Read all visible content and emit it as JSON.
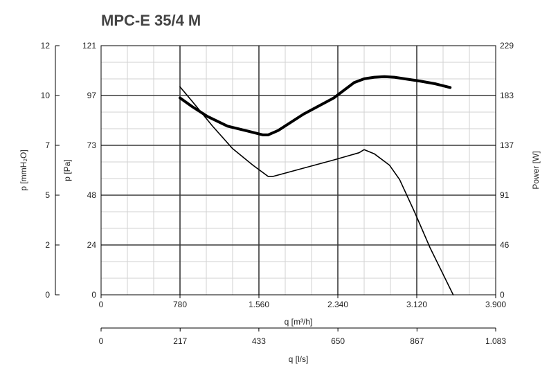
{
  "chart_data": {
    "type": "line",
    "title": "MPC-E 35/4 M",
    "x_axes": [
      {
        "label": "q [m³/h]",
        "range": [
          0,
          3900
        ],
        "ticks": [
          0,
          780,
          1560,
          2340,
          3120,
          3900
        ],
        "tick_labels": [
          "0",
          "780",
          "1.560",
          "2.340",
          "3.120",
          "3.900"
        ]
      },
      {
        "label": "q [l/s]",
        "range": [
          0,
          1083
        ],
        "ticks": [
          0,
          217,
          433,
          650,
          867,
          1083
        ],
        "tick_labels": [
          "0",
          "217",
          "433",
          "650",
          "867",
          "1.083"
        ]
      }
    ],
    "y_axes": [
      {
        "position": "left-outer",
        "label": "p [mmH₂O]",
        "range": [
          0,
          12
        ],
        "ticks": [
          0,
          2,
          5,
          7,
          10,
          12
        ],
        "tick_labels": [
          "0",
          "2",
          "5",
          "7",
          "10",
          "12"
        ]
      },
      {
        "position": "left-inner",
        "label": "p [Pa]",
        "range": [
          0,
          121
        ],
        "ticks": [
          0,
          24,
          48,
          73,
          97,
          121
        ],
        "tick_labels": [
          "0",
          "24",
          "48",
          "73",
          "97",
          "121"
        ]
      },
      {
        "position": "right",
        "label": "Power [W]",
        "range": [
          0,
          229
        ],
        "ticks": [
          0,
          46,
          91,
          137,
          183,
          229
        ],
        "tick_labels": [
          "0",
          "46",
          "91",
          "137",
          "183",
          "229"
        ]
      }
    ],
    "grid": true,
    "series": [
      {
        "axis": "p [Pa]",
        "line_width": "thin",
        "color": "#000000",
        "x": [
          780,
          900,
          1100,
          1300,
          1500,
          1650,
          1700,
          2000,
          2300,
          2550,
          2600,
          2700,
          2850,
          2950,
          3100,
          3250,
          3480
        ],
        "y": [
          101,
          94,
          82,
          71,
          63,
          57.5,
          57.5,
          61.5,
          65.5,
          69,
          70.5,
          68.5,
          63,
          56,
          40,
          23,
          0
        ]
      },
      {
        "axis": "Power [W]",
        "line_width": "thick",
        "color": "#000000",
        "x": [
          780,
          900,
          1050,
          1250,
          1450,
          1600,
          1650,
          1750,
          2000,
          2300,
          2500,
          2600,
          2700,
          2800,
          2900,
          3000,
          3150,
          3300,
          3450
        ],
        "y": [
          181,
          173,
          164,
          155,
          150.5,
          147,
          147,
          151,
          166,
          181,
          195,
          198.5,
          200,
          200.5,
          200,
          198.5,
          196.5,
          194,
          190.5
        ]
      }
    ]
  }
}
